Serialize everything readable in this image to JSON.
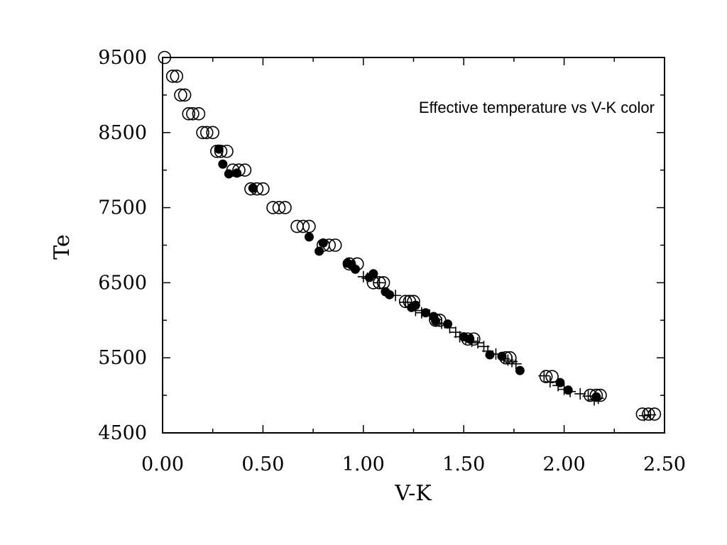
{
  "chart_data": {
    "type": "scatter",
    "title": "",
    "annotation": "Effective temperature vs V-K color",
    "xlabel": "V-K",
    "ylabel": "Te",
    "xlim": [
      0.0,
      2.5
    ],
    "ylim": [
      4500,
      9500
    ],
    "x_ticks": [
      "0.00",
      "0.50",
      "1.00",
      "1.50",
      "2.00",
      "2.50"
    ],
    "y_ticks": [
      "4500",
      "5500",
      "6500",
      "7500",
      "8500",
      "9500"
    ],
    "grid": false,
    "legend": "none",
    "series": [
      {
        "marker": "open-circle",
        "points": [
          [
            0.01,
            9500
          ],
          [
            0.05,
            9250
          ],
          [
            0.07,
            9250
          ],
          [
            0.09,
            9000
          ],
          [
            0.11,
            9000
          ],
          [
            0.13,
            8750
          ],
          [
            0.15,
            8750
          ],
          [
            0.18,
            8750
          ],
          [
            0.2,
            8500
          ],
          [
            0.22,
            8500
          ],
          [
            0.25,
            8500
          ],
          [
            0.27,
            8250
          ],
          [
            0.29,
            8250
          ],
          [
            0.32,
            8250
          ],
          [
            0.35,
            8000
          ],
          [
            0.38,
            8000
          ],
          [
            0.41,
            8000
          ],
          [
            0.44,
            7750
          ],
          [
            0.47,
            7750
          ],
          [
            0.5,
            7750
          ],
          [
            0.55,
            7500
          ],
          [
            0.58,
            7500
          ],
          [
            0.61,
            7500
          ],
          [
            0.67,
            7250
          ],
          [
            0.7,
            7250
          ],
          [
            0.73,
            7250
          ],
          [
            0.8,
            7000
          ],
          [
            0.83,
            7000
          ],
          [
            0.86,
            7000
          ],
          [
            0.93,
            6750
          ],
          [
            0.97,
            6750
          ],
          [
            1.05,
            6500
          ],
          [
            1.08,
            6500
          ],
          [
            1.1,
            6500
          ],
          [
            1.21,
            6250
          ],
          [
            1.23,
            6250
          ],
          [
            1.25,
            6250
          ],
          [
            1.36,
            6000
          ],
          [
            1.38,
            6000
          ],
          [
            1.52,
            5750
          ],
          [
            1.55,
            5750
          ],
          [
            1.71,
            5500
          ],
          [
            1.73,
            5500
          ],
          [
            1.91,
            5250
          ],
          [
            1.94,
            5250
          ],
          [
            2.13,
            5000
          ],
          [
            2.16,
            5000
          ],
          [
            2.18,
            5000
          ],
          [
            2.39,
            4750
          ],
          [
            2.42,
            4750
          ],
          [
            2.45,
            4750
          ]
        ]
      },
      {
        "marker": "filled-circle",
        "points": [
          [
            0.28,
            8280
          ],
          [
            0.3,
            8080
          ],
          [
            0.33,
            7950
          ],
          [
            0.37,
            7960
          ],
          [
            0.45,
            7760
          ],
          [
            0.73,
            7110
          ],
          [
            0.78,
            6920
          ],
          [
            0.8,
            7030
          ],
          [
            0.92,
            6760
          ],
          [
            0.94,
            6740
          ],
          [
            0.96,
            6680
          ],
          [
            1.03,
            6570
          ],
          [
            1.05,
            6620
          ],
          [
            1.11,
            6380
          ],
          [
            1.13,
            6340
          ],
          [
            1.24,
            6170
          ],
          [
            1.26,
            6200
          ],
          [
            1.31,
            6100
          ],
          [
            1.35,
            6050
          ],
          [
            1.36,
            5990
          ],
          [
            1.42,
            5950
          ],
          [
            1.5,
            5780
          ],
          [
            1.53,
            5750
          ],
          [
            1.63,
            5540
          ],
          [
            1.69,
            5520
          ],
          [
            1.78,
            5330
          ],
          [
            1.98,
            5170
          ],
          [
            2.02,
            5070
          ],
          [
            2.16,
            4980
          ]
        ]
      },
      {
        "marker": "plus",
        "points": [
          [
            0.93,
            6760
          ],
          [
            1.0,
            6580
          ],
          [
            1.02,
            6560
          ],
          [
            1.08,
            6500
          ],
          [
            1.16,
            6330
          ],
          [
            1.21,
            6240
          ],
          [
            1.26,
            6130
          ],
          [
            1.29,
            6100
          ],
          [
            1.33,
            6070
          ],
          [
            1.36,
            6010
          ],
          [
            1.39,
            5960
          ],
          [
            1.43,
            5900
          ],
          [
            1.46,
            5840
          ],
          [
            1.48,
            5780
          ],
          [
            1.51,
            5760
          ],
          [
            1.54,
            5720
          ],
          [
            1.57,
            5700
          ],
          [
            1.6,
            5650
          ],
          [
            1.62,
            5590
          ],
          [
            1.66,
            5550
          ],
          [
            1.7,
            5490
          ],
          [
            1.72,
            5470
          ],
          [
            1.74,
            5450
          ],
          [
            1.76,
            5420
          ],
          [
            1.9,
            5260
          ],
          [
            1.93,
            5180
          ],
          [
            1.97,
            5130
          ],
          [
            2.0,
            5080
          ],
          [
            2.03,
            5050
          ],
          [
            2.08,
            5020
          ],
          [
            2.12,
            4990
          ],
          [
            2.15,
            4940
          ],
          [
            2.17,
            4960
          ],
          [
            2.4,
            4730
          ],
          [
            2.43,
            4740
          ]
        ]
      }
    ]
  }
}
